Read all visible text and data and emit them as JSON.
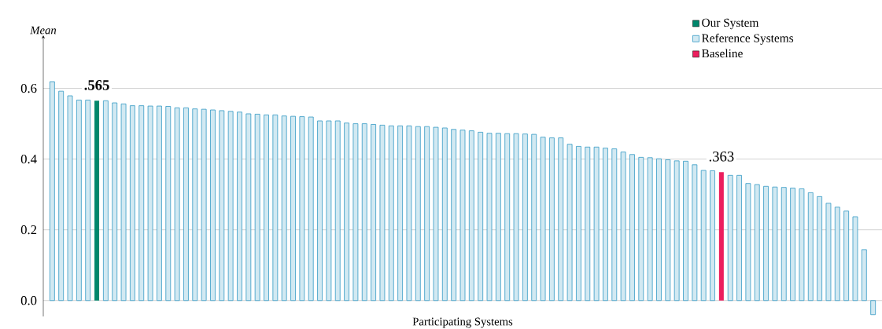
{
  "chart_data": {
    "type": "bar",
    "xlabel": "Participating Systems",
    "ylabel": "Mean",
    "categories": [
      null,
      null,
      null,
      null,
      null,
      null,
      null,
      null,
      null,
      null,
      null,
      null,
      null,
      null,
      null,
      null,
      null,
      null,
      null,
      null,
      null,
      null,
      null,
      null,
      null,
      null,
      null,
      null,
      null,
      null,
      null,
      null,
      null,
      null,
      null,
      null,
      null,
      null,
      null,
      null,
      null,
      null,
      null,
      null,
      null,
      null,
      null,
      null,
      null,
      null,
      null,
      null,
      null,
      null,
      null,
      null,
      null,
      null,
      null,
      null,
      null,
      null,
      null,
      null,
      null,
      null,
      null,
      null,
      null,
      null,
      null,
      null,
      null,
      null,
      null,
      null,
      null,
      null,
      null,
      null,
      null,
      null,
      null,
      null,
      null,
      null,
      null,
      null,
      null,
      null,
      null,
      null,
      null
    ],
    "series": [
      {
        "name": "Our System",
        "color": "#00876c",
        "values": [
          null,
          null,
          null,
          null,
          null,
          0.565,
          null,
          null,
          null,
          null,
          null,
          null,
          null,
          null,
          null,
          null,
          null,
          null,
          null,
          null,
          null,
          null,
          null,
          null,
          null,
          null,
          null,
          null,
          null,
          null,
          null,
          null,
          null,
          null,
          null,
          null,
          null,
          null,
          null,
          null,
          null,
          null,
          null,
          null,
          null,
          null,
          null,
          null,
          null,
          null,
          null,
          null,
          null,
          null,
          null,
          null,
          null,
          null,
          null,
          null,
          null,
          null,
          null,
          null,
          null,
          null,
          null,
          null,
          null,
          null,
          null,
          null,
          null,
          null,
          null,
          null,
          null,
          null,
          null,
          null,
          null,
          null,
          null,
          null,
          null,
          null,
          null,
          null,
          null,
          null,
          null,
          null,
          null
        ],
        "value_labels": [
          null,
          null,
          null,
          null,
          null,
          "**.565**",
          null,
          null,
          null,
          null,
          null,
          null,
          null,
          null,
          null,
          null,
          null,
          null,
          null,
          null,
          null,
          null,
          null,
          null,
          null,
          null,
          null,
          null,
          null,
          null,
          null,
          null,
          null,
          null,
          null,
          null,
          null,
          null,
          null,
          null,
          null,
          null,
          null,
          null,
          null,
          null,
          null,
          null,
          null,
          null,
          null,
          null,
          null,
          null,
          null,
          null,
          null,
          null,
          null,
          null,
          null,
          null,
          null,
          null,
          null,
          null,
          null,
          null,
          null,
          null,
          null,
          null,
          null,
          null,
          null,
          null,
          null,
          null,
          null,
          null,
          null,
          null,
          null,
          null,
          null,
          null,
          null,
          null,
          null,
          null,
          null,
          null,
          null
        ]
      },
      {
        "name": "Reference Systems",
        "color": "#3399c4",
        "values": [
          0.619,
          0.592,
          0.579,
          0.567,
          0.567,
          null,
          0.565,
          0.559,
          0.556,
          0.551,
          0.551,
          0.55,
          0.55,
          0.549,
          0.545,
          0.545,
          0.542,
          0.541,
          0.539,
          0.537,
          0.535,
          0.533,
          0.528,
          0.527,
          0.525,
          0.525,
          0.522,
          0.521,
          0.52,
          0.519,
          0.508,
          0.508,
          0.508,
          0.502,
          0.5,
          0.5,
          0.498,
          0.496,
          0.494,
          0.494,
          0.494,
          0.492,
          0.492,
          0.49,
          0.488,
          0.484,
          0.482,
          0.48,
          0.476,
          0.473,
          0.473,
          0.472,
          0.472,
          0.471,
          0.47,
          0.462,
          0.46,
          0.46,
          0.442,
          0.436,
          0.434,
          0.434,
          0.431,
          0.429,
          0.42,
          0.413,
          0.405,
          0.404,
          0.401,
          0.398,
          0.395,
          0.394,
          0.384,
          0.368,
          0.367,
          null,
          0.354,
          0.354,
          0.331,
          0.328,
          0.323,
          0.321,
          0.32,
          0.318,
          0.316,
          0.305,
          0.294,
          0.275,
          0.264,
          0.253,
          0.237,
          0.144,
          -0.04
        ]
      },
      {
        "name": "Baseline",
        "color": "#ec1f5e",
        "values": [
          null,
          null,
          null,
          null,
          null,
          null,
          null,
          null,
          null,
          null,
          null,
          null,
          null,
          null,
          null,
          null,
          null,
          null,
          null,
          null,
          null,
          null,
          null,
          null,
          null,
          null,
          null,
          null,
          null,
          null,
          null,
          null,
          null,
          null,
          null,
          null,
          null,
          null,
          null,
          null,
          null,
          null,
          null,
          null,
          null,
          null,
          null,
          null,
          null,
          null,
          null,
          null,
          null,
          null,
          null,
          null,
          null,
          null,
          null,
          null,
          null,
          null,
          null,
          null,
          null,
          null,
          null,
          null,
          null,
          null,
          null,
          null,
          null,
          null,
          null,
          0.363,
          null,
          null,
          null,
          null,
          null,
          null,
          null,
          null,
          null,
          null,
          null,
          null,
          null,
          null,
          null,
          null,
          null
        ],
        "value_labels": [
          null,
          null,
          null,
          null,
          null,
          null,
          null,
          null,
          null,
          null,
          null,
          null,
          null,
          null,
          null,
          null,
          null,
          null,
          null,
          null,
          null,
          null,
          null,
          null,
          null,
          null,
          null,
          null,
          null,
          null,
          null,
          null,
          null,
          null,
          null,
          null,
          null,
          null,
          null,
          null,
          null,
          null,
          null,
          null,
          null,
          null,
          null,
          null,
          null,
          null,
          null,
          null,
          null,
          null,
          null,
          null,
          null,
          null,
          null,
          null,
          null,
          null,
          null,
          null,
          null,
          null,
          null,
          null,
          null,
          null,
          null,
          null,
          null,
          null,
          null,
          ".363",
          null,
          null,
          null,
          null,
          null,
          null,
          null,
          null,
          null,
          null,
          null,
          null,
          null,
          null,
          null,
          null,
          null
        ]
      }
    ],
    "ylim": [
      -0.045,
      0.75
    ],
    "yticks": [
      {
        "value": 0,
        "label": "0.0"
      },
      {
        "value": 0.2,
        "label": "0.2"
      },
      {
        "value": 0.4,
        "label": "0.4"
      },
      {
        "value": 0.6,
        "label": "0.6"
      }
    ],
    "grid": "y",
    "legend": "top right",
    "tick_labels": "y"
  }
}
